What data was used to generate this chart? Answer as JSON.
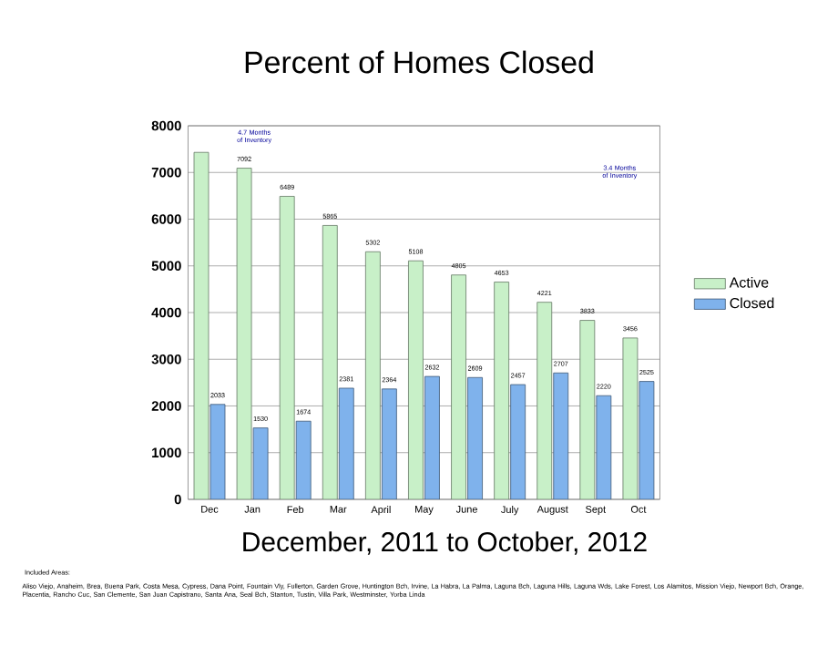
{
  "chart_data": {
    "type": "bar",
    "title": "Percent of Homes Closed",
    "subtitle": "December, 2011 to October, 2012",
    "categories": [
      "Dec",
      "Jan",
      "Feb",
      "Mar",
      "April",
      "May",
      "June",
      "July",
      "August",
      "Sept",
      "Oct"
    ],
    "series": [
      {
        "name": "Active",
        "color": "#c8f0c8",
        "values": [
          7430,
          7092,
          6489,
          5865,
          5302,
          5108,
          4805,
          4653,
          4221,
          3833,
          3456
        ],
        "value_labels": [
          null,
          "7092",
          "6489",
          "5865",
          "5302",
          "5108",
          "4805",
          "4653",
          "4221",
          "3833",
          "3456"
        ]
      },
      {
        "name": "Closed",
        "color": "#7fb2ec",
        "values": [
          2033,
          1530,
          1674,
          2381,
          2364,
          2632,
          2609,
          2457,
          2707,
          2220,
          2525
        ],
        "value_labels": [
          "2033",
          "1530",
          "1674",
          "2381",
          "2364",
          "2632",
          "2609",
          "2457",
          "2707",
          "2220",
          "2525"
        ]
      }
    ],
    "ylim": [
      0,
      8000
    ],
    "yticks": [
      0,
      1000,
      2000,
      3000,
      4000,
      5000,
      6000,
      7000,
      8000
    ],
    "grid": "y",
    "legend": "right",
    "annotations": [
      "4.7 Months of Inventory",
      "3.4 Months of Inventory",
      "Included Areas:",
      "Aliso Viejo, Anaheim, Brea, Buena Park, Costa Mesa, Cypress, Dana Point, Fountain Vly, Fullerton, Garden Grove, Huntington Bch, Irvine, La Habra, La Palma, Laguna Bch, Laguna Hills, Laguna Wds, Lake Forest, Los Alamitos, Mission Viejo, Newport Bch, Orange, Placentia, Rancho Cuc, San Clemente, San Juan Capistrano, Santa Ana, Seal Bch, Stanton, Tustin, Villa Park, Westminster, Yorba Linda"
    ]
  }
}
